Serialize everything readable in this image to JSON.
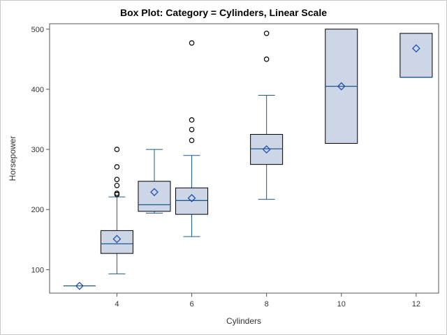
{
  "chart_data": {
    "type": "box",
    "title": "Box Plot: Category = Cylinders, Linear Scale",
    "xlabel": "Cylinders",
    "ylabel": "Horsepower",
    "x_ticks": [
      4,
      6,
      8,
      10,
      12
    ],
    "y_ticks": [
      100,
      200,
      300,
      400,
      500
    ],
    "xlim": [
      2.2,
      12.6
    ],
    "ylim": [
      61,
      509
    ],
    "grid": false,
    "colors": {
      "box_fill": "#cdd6e6",
      "box_edge": "#000000",
      "whisker": "#1f5a8c",
      "median": "#1f5a8c",
      "mean_marker": "#1f4fb0",
      "outlier": "#000000"
    },
    "boxes": [
      {
        "category": 3,
        "min": 73,
        "q1": 73,
        "median": 73,
        "q3": 73,
        "max": 73,
        "mean": 73,
        "outliers": []
      },
      {
        "category": 4,
        "min": 93,
        "q1": 127,
        "median": 143,
        "q3": 165,
        "max": 221,
        "mean": 151,
        "outliers": [
          225,
          227,
          240,
          250,
          271,
          300
        ]
      },
      {
        "category": 5,
        "min": 194,
        "q1": 197,
        "median": 208,
        "q3": 247,
        "max": 300,
        "mean": 229,
        "outliers": []
      },
      {
        "category": 6,
        "min": 155,
        "q1": 192,
        "median": 215,
        "q3": 236,
        "max": 290,
        "mean": 219,
        "outliers": [
          315,
          333,
          349,
          477
        ]
      },
      {
        "category": 8,
        "min": 217,
        "q1": 275,
        "median": 301,
        "q3": 325,
        "max": 390,
        "mean": 300,
        "outliers": [
          450,
          493
        ]
      },
      {
        "category": 10,
        "min": 310,
        "q1": 310,
        "median": 405,
        "q3": 500,
        "max": 500,
        "mean": 405,
        "outliers": []
      },
      {
        "category": 12,
        "min": 420,
        "q1": 420,
        "median": 420,
        "q3": 493,
        "max": 493,
        "mean": 468,
        "outliers": []
      }
    ]
  }
}
